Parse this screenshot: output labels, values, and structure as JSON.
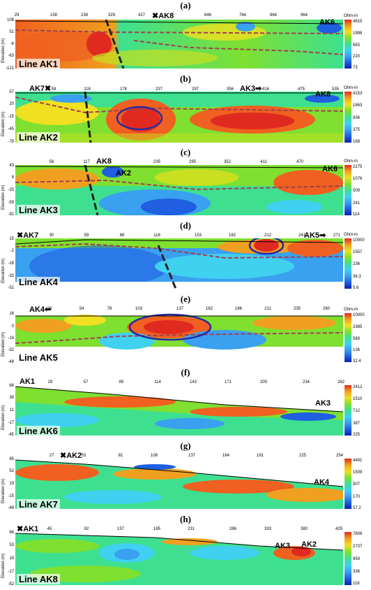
{
  "unit": "Ohm-m",
  "elevation_label": "Elevation (m)",
  "palette": [
    "#0a1fb0",
    "#1f5fe0",
    "#3aa0f0",
    "#40d0f0",
    "#3ee090",
    "#7fe030",
    "#c8e020",
    "#f0e020",
    "#f0a020",
    "#f06020",
    "#e02a20"
  ],
  "panels": [
    {
      "letter": "(a)",
      "line": "Line AK1",
      "x_ticks": [
        "29",
        "158",
        "238",
        "329",
        "427",
        "527",
        "646",
        "764",
        "864",
        "964"
      ],
      "y_ticks": [
        "108",
        "51",
        "-6",
        "-63",
        "-121"
      ],
      "color_ticks": [
        "4815",
        "1998",
        "663",
        "220",
        "73"
      ],
      "markers": [
        {
          "name": "AK8",
          "symbol": "✖"
        },
        {
          "name": "AK6",
          "symbol": "✖"
        }
      ]
    },
    {
      "letter": "(b)",
      "line": "Line AK2",
      "x_ticks": [
        "-",
        "59",
        "118",
        "178",
        "237",
        "297",
        "356",
        "416",
        "475",
        "535"
      ],
      "y_ticks": [
        "57",
        "20",
        "-15",
        "-45",
        "-78"
      ],
      "color_ticks": [
        "4153",
        "1863",
        "836",
        "375",
        "169"
      ],
      "markers": [
        {
          "name": "AK7",
          "symbol": "✖"
        },
        {
          "name": "AK3",
          "symbol": "➡"
        },
        {
          "name": "AK8",
          "symbol": "✖"
        }
      ]
    },
    {
      "letter": "(c)",
      "line": "Line AK3",
      "x_ticks": [
        "-",
        "58",
        "117",
        "176",
        "235",
        "295",
        "352",
        "411",
        "470",
        "530"
      ],
      "y_ticks": [
        "43",
        "8",
        "-25",
        "-59",
        "-92"
      ],
      "color_ticks": [
        "2275",
        "1076",
        "509",
        "241",
        "114"
      ],
      "markers": [
        {
          "name": "AK8",
          "symbol": "✖"
        },
        {
          "name": "AK2",
          "symbol": "⬅"
        },
        {
          "name": "AK6",
          "symbol": "✖"
        }
      ]
    },
    {
      "letter": "(d)",
      "line": "Line AK4",
      "x_ticks": [
        "-",
        "30",
        "59",
        "88",
        "118",
        "153",
        "182",
        "212",
        "241",
        "271"
      ],
      "y_ticks": [
        "15",
        "-2",
        "-18",
        "-33",
        "-51"
      ],
      "color_ticks": [
        "10000",
        "1557",
        "236",
        "36.3",
        "5.6"
      ],
      "markers": [
        {
          "name": "AK7",
          "symbol": "✖"
        },
        {
          "name": "AK5",
          "symbol": "➡"
        }
      ]
    },
    {
      "letter": "(e)",
      "line": "Line AK5",
      "x_ticks": [
        "-",
        "29",
        "54",
        "78",
        "103",
        "137",
        "162",
        "186",
        "211",
        "235",
        "260"
      ],
      "y_ticks": [
        "16",
        "0",
        "-16",
        "-32",
        "-48"
      ],
      "color_ticks": [
        "10000",
        "2385",
        "569",
        "136",
        "32.4"
      ],
      "markers": [
        {
          "name": "AK4",
          "symbol": "⬅"
        }
      ]
    },
    {
      "letter": "(f)",
      "line": "Line AK6",
      "x_ticks": [
        "-",
        "29",
        "57",
        "85",
        "114",
        "143",
        "171",
        "200",
        "234",
        "262"
      ],
      "y_ticks": [
        "66",
        "38",
        "11",
        "-17",
        "-45"
      ],
      "color_ticks": [
        "2412",
        "1510",
        "712",
        "387",
        "225"
      ],
      "markers": [
        {
          "name": "AK1",
          "symbol": "✖"
        },
        {
          "name": "AK3",
          "symbol": "✖"
        }
      ]
    },
    {
      "letter": "(g)",
      "line": "Line AK7",
      "x_ticks": [
        "-",
        "27",
        "53",
        "81",
        "108",
        "137",
        "164",
        "191",
        "225",
        "254"
      ],
      "y_ticks": [
        "85",
        "52",
        "19",
        "-15",
        "-48"
      ],
      "color_ticks": [
        "4491",
        "1509",
        "507",
        "170",
        "57.2"
      ],
      "markers": [
        {
          "name": "AK2",
          "symbol": "✖"
        },
        {
          "name": "AK4",
          "symbol": "✖"
        }
      ]
    },
    {
      "letter": "(h)",
      "line": "Line AK8",
      "x_ticks": [
        "-",
        "45",
        "92",
        "137",
        "185",
        "231",
        "286",
        "333",
        "380",
        "425"
      ],
      "y_ticks": [
        "86",
        "53",
        "18",
        "-17",
        "-52"
      ],
      "color_ticks": [
        "7808",
        "2737",
        "959",
        "336",
        "118"
      ],
      "markers": [
        {
          "name": "AK1",
          "symbol": "✖"
        },
        {
          "name": "AK3",
          "symbol": "✖"
        },
        {
          "name": "AK2",
          "symbol": "✖"
        }
      ]
    }
  ]
}
